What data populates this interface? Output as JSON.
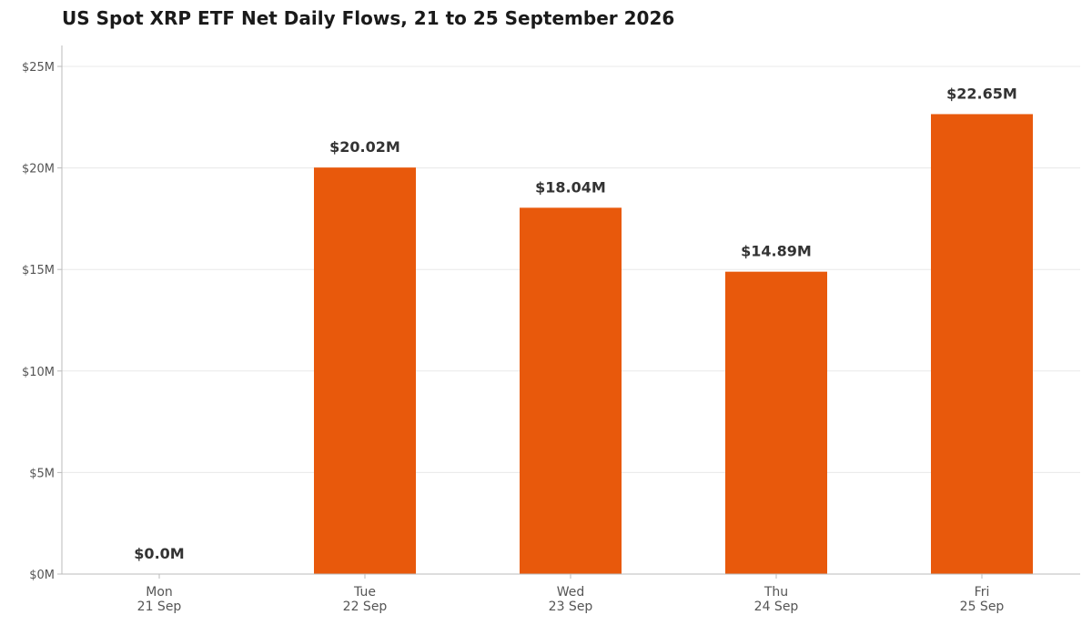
{
  "chart_data": {
    "type": "bar",
    "title": "US Spot XRP ETF Net Daily Flows, 21 to 25 September 2026",
    "categories": [
      {
        "day": "Mon",
        "date": "21 Sep"
      },
      {
        "day": "Tue",
        "date": "22 Sep"
      },
      {
        "day": "Wed",
        "date": "23 Sep"
      },
      {
        "day": "Thu",
        "date": "24 Sep"
      },
      {
        "day": "Fri",
        "date": "25 Sep"
      }
    ],
    "values": [
      0.0,
      20.02,
      18.04,
      14.89,
      22.65
    ],
    "value_labels": [
      "$0.0M",
      "$20.02M",
      "$18.04M",
      "$14.89M",
      "$22.65M"
    ],
    "unit": "USD millions",
    "ylim": [
      0,
      26
    ],
    "yticks": [
      0,
      5,
      10,
      15,
      20,
      25
    ],
    "ytick_labels": [
      "$0M",
      "$5M",
      "$10M",
      "$15M",
      "$20M",
      "$25M"
    ],
    "xlabel": "",
    "ylabel": "",
    "grid": "horizontal",
    "legend": "none",
    "bar_color": "#e8590c",
    "grid_color": "#e8e8e8",
    "axis_color": "#bbbbbb",
    "tick_label_color": "#555555",
    "value_label_color": "#333333"
  }
}
